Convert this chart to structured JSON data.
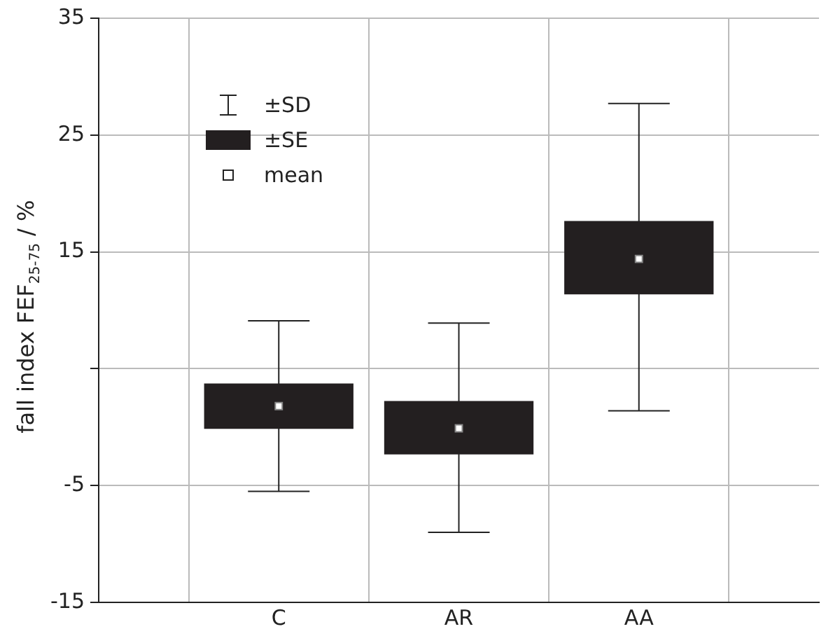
{
  "chart_data": {
    "type": "box",
    "ylabel": "fall index FEF$_{25-75}$ / %",
    "categories": [
      "C",
      "AR",
      "AA"
    ],
    "boxes": [
      {
        "low": -5.5,
        "q1": -0.1,
        "q3": 3.7,
        "high": 9.1,
        "mean": 1.8
      },
      {
        "low": -9.0,
        "q1": -2.3,
        "q3": 2.2,
        "high": 8.9,
        "mean": -0.1
      },
      {
        "low": 1.4,
        "q1": 11.4,
        "q3": 17.6,
        "high": 27.7,
        "mean": 14.4
      }
    ],
    "color": "#231f20",
    "ylim": [
      -15,
      35
    ],
    "yticks": [
      -15,
      -5,
      {
        "value": 5,
        "label": null
      },
      15,
      25,
      35
    ],
    "grid": true,
    "annotations": [
      "±SD",
      "±SE",
      "mean"
    ]
  }
}
